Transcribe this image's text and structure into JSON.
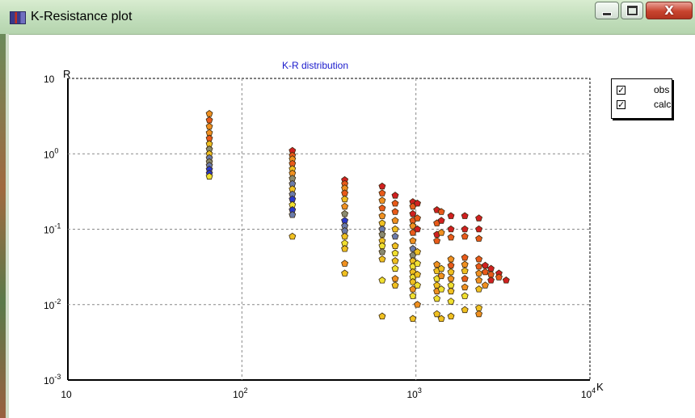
{
  "window": {
    "title": "K-Resistance plot",
    "minimize_icon": "minimize-icon",
    "maximize_icon": "maximize-icon",
    "close_icon": "close-icon",
    "close_glyph": "X"
  },
  "legend": {
    "items": [
      {
        "label": "obs",
        "checked": true,
        "check_glyph": "✓"
      },
      {
        "label": "calc",
        "checked": true,
        "check_glyph": "✓"
      }
    ]
  },
  "chart_data": {
    "type": "scatter",
    "title": "K-R distribution",
    "xlabel": "K",
    "ylabel": "R",
    "x_scale": "log",
    "y_scale": "log",
    "xlim": [
      10,
      10000
    ],
    "ylim": [
      0.001,
      10
    ],
    "x_ticks": [
      {
        "base": "10",
        "exp": ""
      },
      {
        "base": "10",
        "exp": "2"
      },
      {
        "base": "10",
        "exp": "3"
      },
      {
        "base": "10",
        "exp": "4"
      }
    ],
    "y_ticks": [
      {
        "base": "10",
        "exp": "-3"
      },
      {
        "base": "10",
        "exp": "-2"
      },
      {
        "base": "10",
        "exp": "-1"
      },
      {
        "base": "10",
        "exp": "0"
      },
      {
        "base": "10",
        "exp": ""
      }
    ],
    "grid": true,
    "legend_position": "top-right",
    "colors": {
      "title": "#1a1acc",
      "grid": "#888888",
      "points": [
        "#d02020",
        "#e85a1a",
        "#f09020",
        "#f0c020",
        "#f0e030",
        "#8a8a70",
        "#6a7aaa",
        "#2a3acc"
      ]
    },
    "points": [
      {
        "K": 65,
        "R": 3.4,
        "c": 2
      },
      {
        "K": 65,
        "R": 2.8,
        "c": 1
      },
      {
        "K": 65,
        "R": 2.3,
        "c": 2
      },
      {
        "K": 65,
        "R": 1.9,
        "c": 2
      },
      {
        "K": 65,
        "R": 1.6,
        "c": 1
      },
      {
        "K": 65,
        "R": 1.35,
        "c": 3
      },
      {
        "K": 65,
        "R": 1.15,
        "c": 5
      },
      {
        "K": 65,
        "R": 1.0,
        "c": 3
      },
      {
        "K": 65,
        "R": 0.88,
        "c": 6
      },
      {
        "K": 65,
        "R": 0.78,
        "c": 5
      },
      {
        "K": 65,
        "R": 0.7,
        "c": 6
      },
      {
        "K": 65,
        "R": 0.62,
        "c": 7
      },
      {
        "K": 65,
        "R": 0.55,
        "c": 7
      },
      {
        "K": 65,
        "R": 0.5,
        "c": 4
      },
      {
        "K": 195,
        "R": 1.1,
        "c": 0
      },
      {
        "K": 195,
        "R": 0.95,
        "c": 1
      },
      {
        "K": 195,
        "R": 0.85,
        "c": 2
      },
      {
        "K": 195,
        "R": 0.74,
        "c": 1
      },
      {
        "K": 195,
        "R": 0.63,
        "c": 3
      },
      {
        "K": 195,
        "R": 0.55,
        "c": 2
      },
      {
        "K": 195,
        "R": 0.47,
        "c": 5
      },
      {
        "K": 195,
        "R": 0.4,
        "c": 6
      },
      {
        "K": 195,
        "R": 0.34,
        "c": 3
      },
      {
        "K": 195,
        "R": 0.29,
        "c": 6
      },
      {
        "K": 195,
        "R": 0.25,
        "c": 7
      },
      {
        "K": 195,
        "R": 0.21,
        "c": 4
      },
      {
        "K": 195,
        "R": 0.18,
        "c": 7
      },
      {
        "K": 195,
        "R": 0.155,
        "c": 6
      },
      {
        "K": 195,
        "R": 0.08,
        "c": 3
      },
      {
        "K": 390,
        "R": 0.45,
        "c": 0
      },
      {
        "K": 390,
        "R": 0.4,
        "c": 1
      },
      {
        "K": 390,
        "R": 0.35,
        "c": 2
      },
      {
        "K": 390,
        "R": 0.3,
        "c": 1
      },
      {
        "K": 390,
        "R": 0.25,
        "c": 3
      },
      {
        "K": 390,
        "R": 0.2,
        "c": 2
      },
      {
        "K": 390,
        "R": 0.16,
        "c": 5
      },
      {
        "K": 390,
        "R": 0.13,
        "c": 7
      },
      {
        "K": 390,
        "R": 0.11,
        "c": 6
      },
      {
        "K": 390,
        "R": 0.095,
        "c": 6
      },
      {
        "K": 390,
        "R": 0.08,
        "c": 3
      },
      {
        "K": 390,
        "R": 0.065,
        "c": 4
      },
      {
        "K": 390,
        "R": 0.055,
        "c": 3
      },
      {
        "K": 390,
        "R": 0.035,
        "c": 2
      },
      {
        "K": 390,
        "R": 0.026,
        "c": 3
      },
      {
        "K": 640,
        "R": 0.37,
        "c": 0
      },
      {
        "K": 640,
        "R": 0.3,
        "c": 1
      },
      {
        "K": 640,
        "R": 0.24,
        "c": 2
      },
      {
        "K": 640,
        "R": 0.19,
        "c": 1
      },
      {
        "K": 640,
        "R": 0.15,
        "c": 2
      },
      {
        "K": 640,
        "R": 0.12,
        "c": 3
      },
      {
        "K": 640,
        "R": 0.1,
        "c": 6
      },
      {
        "K": 640,
        "R": 0.085,
        "c": 5
      },
      {
        "K": 640,
        "R": 0.07,
        "c": 3
      },
      {
        "K": 640,
        "R": 0.06,
        "c": 4
      },
      {
        "K": 640,
        "R": 0.05,
        "c": 5
      },
      {
        "K": 640,
        "R": 0.04,
        "c": 3
      },
      {
        "K": 640,
        "R": 0.021,
        "c": 4
      },
      {
        "K": 640,
        "R": 0.007,
        "c": 3
      },
      {
        "K": 760,
        "R": 0.28,
        "c": 0
      },
      {
        "K": 760,
        "R": 0.22,
        "c": 1
      },
      {
        "K": 760,
        "R": 0.17,
        "c": 1
      },
      {
        "K": 760,
        "R": 0.13,
        "c": 2
      },
      {
        "K": 760,
        "R": 0.1,
        "c": 3
      },
      {
        "K": 760,
        "R": 0.08,
        "c": 6
      },
      {
        "K": 760,
        "R": 0.06,
        "c": 3
      },
      {
        "K": 760,
        "R": 0.048,
        "c": 4
      },
      {
        "K": 760,
        "R": 0.038,
        "c": 3
      },
      {
        "K": 760,
        "R": 0.03,
        "c": 4
      },
      {
        "K": 760,
        "R": 0.022,
        "c": 2
      },
      {
        "K": 760,
        "R": 0.018,
        "c": 3
      },
      {
        "K": 960,
        "R": 0.23,
        "c": 0
      },
      {
        "K": 960,
        "R": 0.2,
        "c": 1
      },
      {
        "K": 960,
        "R": 0.16,
        "c": 0
      },
      {
        "K": 960,
        "R": 0.13,
        "c": 1
      },
      {
        "K": 960,
        "R": 0.11,
        "c": 2
      },
      {
        "K": 960,
        "R": 0.09,
        "c": 1
      },
      {
        "K": 960,
        "R": 0.07,
        "c": 2
      },
      {
        "K": 960,
        "R": 0.055,
        "c": 6
      },
      {
        "K": 960,
        "R": 0.045,
        "c": 5
      },
      {
        "K": 960,
        "R": 0.038,
        "c": 3
      },
      {
        "K": 960,
        "R": 0.032,
        "c": 4
      },
      {
        "K": 960,
        "R": 0.027,
        "c": 3
      },
      {
        "K": 960,
        "R": 0.023,
        "c": 4
      },
      {
        "K": 960,
        "R": 0.02,
        "c": 3
      },
      {
        "K": 960,
        "R": 0.016,
        "c": 2
      },
      {
        "K": 960,
        "R": 0.013,
        "c": 4
      },
      {
        "K": 960,
        "R": 0.0065,
        "c": 3
      },
      {
        "K": 1020,
        "R": 0.22,
        "c": 0
      },
      {
        "K": 1020,
        "R": 0.14,
        "c": 1
      },
      {
        "K": 1020,
        "R": 0.1,
        "c": 0
      },
      {
        "K": 1020,
        "R": 0.05,
        "c": 3
      },
      {
        "K": 1020,
        "R": 0.035,
        "c": 4
      },
      {
        "K": 1020,
        "R": 0.025,
        "c": 3
      },
      {
        "K": 1020,
        "R": 0.018,
        "c": 4
      },
      {
        "K": 1020,
        "R": 0.01,
        "c": 2
      },
      {
        "K": 1320,
        "R": 0.18,
        "c": 0
      },
      {
        "K": 1320,
        "R": 0.12,
        "c": 1
      },
      {
        "K": 1320,
        "R": 0.085,
        "c": 0
      },
      {
        "K": 1320,
        "R": 0.07,
        "c": 1
      },
      {
        "K": 1320,
        "R": 0.034,
        "c": 2
      },
      {
        "K": 1320,
        "R": 0.028,
        "c": 3
      },
      {
        "K": 1320,
        "R": 0.022,
        "c": 4
      },
      {
        "K": 1320,
        "R": 0.018,
        "c": 3
      },
      {
        "K": 1320,
        "R": 0.015,
        "c": 2
      },
      {
        "K": 1320,
        "R": 0.012,
        "c": 4
      },
      {
        "K": 1320,
        "R": 0.0075,
        "c": 3
      },
      {
        "K": 1400,
        "R": 0.17,
        "c": 1
      },
      {
        "K": 1400,
        "R": 0.13,
        "c": 0
      },
      {
        "K": 1400,
        "R": 0.09,
        "c": 2
      },
      {
        "K": 1400,
        "R": 0.03,
        "c": 3
      },
      {
        "K": 1400,
        "R": 0.024,
        "c": 2
      },
      {
        "K": 1400,
        "R": 0.016,
        "c": 4
      },
      {
        "K": 1400,
        "R": 0.0065,
        "c": 3
      },
      {
        "K": 1590,
        "R": 0.15,
        "c": 0
      },
      {
        "K": 1590,
        "R": 0.1,
        "c": 0
      },
      {
        "K": 1590,
        "R": 0.078,
        "c": 1
      },
      {
        "K": 1590,
        "R": 0.04,
        "c": 2
      },
      {
        "K": 1590,
        "R": 0.033,
        "c": 1
      },
      {
        "K": 1590,
        "R": 0.027,
        "c": 3
      },
      {
        "K": 1590,
        "R": 0.022,
        "c": 2
      },
      {
        "K": 1590,
        "R": 0.018,
        "c": 4
      },
      {
        "K": 1590,
        "R": 0.015,
        "c": 3
      },
      {
        "K": 1590,
        "R": 0.011,
        "c": 4
      },
      {
        "K": 1590,
        "R": 0.007,
        "c": 3
      },
      {
        "K": 1910,
        "R": 0.15,
        "c": 0
      },
      {
        "K": 1910,
        "R": 0.1,
        "c": 0
      },
      {
        "K": 1910,
        "R": 0.08,
        "c": 1
      },
      {
        "K": 1910,
        "R": 0.042,
        "c": 1
      },
      {
        "K": 1910,
        "R": 0.034,
        "c": 2
      },
      {
        "K": 1910,
        "R": 0.028,
        "c": 3
      },
      {
        "K": 1910,
        "R": 0.022,
        "c": 1
      },
      {
        "K": 1910,
        "R": 0.017,
        "c": 2
      },
      {
        "K": 1910,
        "R": 0.013,
        "c": 4
      },
      {
        "K": 1910,
        "R": 0.0085,
        "c": 3
      },
      {
        "K": 2300,
        "R": 0.14,
        "c": 0
      },
      {
        "K": 2300,
        "R": 0.1,
        "c": 0
      },
      {
        "K": 2300,
        "R": 0.075,
        "c": 1
      },
      {
        "K": 2300,
        "R": 0.04,
        "c": 1
      },
      {
        "K": 2300,
        "R": 0.032,
        "c": 1
      },
      {
        "K": 2300,
        "R": 0.026,
        "c": 2
      },
      {
        "K": 2300,
        "R": 0.021,
        "c": 2
      },
      {
        "K": 2300,
        "R": 0.016,
        "c": 3
      },
      {
        "K": 2300,
        "R": 0.009,
        "c": 3
      },
      {
        "K": 2300,
        "R": 0.0075,
        "c": 2
      },
      {
        "K": 2500,
        "R": 0.033,
        "c": 0
      },
      {
        "K": 2500,
        "R": 0.027,
        "c": 1
      },
      {
        "K": 2500,
        "R": 0.018,
        "c": 2
      },
      {
        "K": 2700,
        "R": 0.03,
        "c": 0
      },
      {
        "K": 2700,
        "R": 0.025,
        "c": 1
      },
      {
        "K": 2700,
        "R": 0.021,
        "c": 0
      },
      {
        "K": 3000,
        "R": 0.026,
        "c": 0
      },
      {
        "K": 3000,
        "R": 0.023,
        "c": 1
      },
      {
        "K": 3300,
        "R": 0.021,
        "c": 0
      }
    ]
  }
}
